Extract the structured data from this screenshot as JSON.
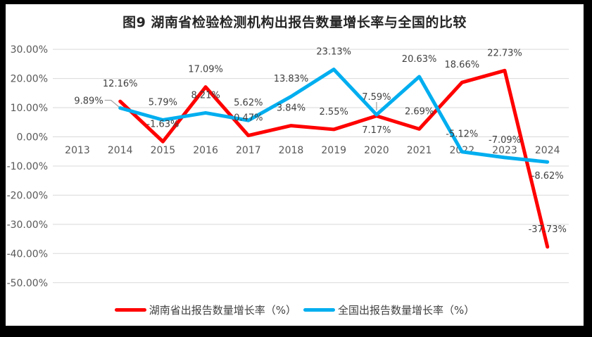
{
  "title": "图9 湖南省检验检测机构出报告数量增长率与全国的比较",
  "colors": {
    "hunan_line": "#FF0000",
    "national_line": "#00AEEF",
    "grid": "#D9D9D9",
    "axis_text": "#595959",
    "data_label_text": "#404040",
    "leader_line": "#A6A6A6",
    "frame": "#000000",
    "chart_background": "#FFFFFF"
  },
  "chart_data": {
    "type": "line",
    "title": "图9 湖南省检验检测机构出报告数量增长率与全国的比较",
    "categories": [
      "2013",
      "2014",
      "2015",
      "2016",
      "2017",
      "2018",
      "2019",
      "2020",
      "2021",
      "2022",
      "2023",
      "2024"
    ],
    "y_ticks": [
      "30.00%",
      "20.00%",
      "10.00%",
      "0.00%",
      "-10.00%",
      "-20.00%",
      "-30.00%",
      "-40.00%",
      "-50.00%"
    ],
    "ylim": [
      -50,
      30
    ],
    "grid": true,
    "legend_position": "bottom",
    "xlabel": "",
    "ylabel": "",
    "series": [
      {
        "name": "湖南省出报告数量增长率（%）",
        "color": "#FF0000",
        "start_index": 1,
        "values": [
          12.16,
          -1.63,
          17.09,
          0.47,
          3.84,
          2.55,
          7.17,
          2.69,
          18.66,
          22.73,
          -37.73
        ],
        "labels": [
          "12.16%",
          "-1.63%",
          "17.09%",
          "0.47%",
          "3.84%",
          "2.55%",
          "7.17%",
          "2.69%",
          "18.66%",
          "22.73%",
          "-37.73%"
        ],
        "label_pos": [
          "a",
          "a",
          "a",
          "a",
          "a",
          "a",
          "b",
          "a",
          "a",
          "a",
          "a"
        ]
      },
      {
        "name": "全国出报告数量增长率（%）",
        "color": "#00AEEF",
        "start_index": 1,
        "values": [
          9.89,
          5.79,
          8.21,
          5.62,
          13.83,
          23.13,
          7.59,
          20.63,
          -5.12,
          -7.09,
          -8.62
        ],
        "labels": [
          "9.89%",
          "5.79%",
          "8.21%",
          "5.62%",
          "13.83%",
          "23.13%",
          "7.59%",
          "20.63%",
          "-5.12%",
          "-7.09%",
          "-8.62%"
        ],
        "label_pos": [
          "ll",
          "a",
          "a",
          "a",
          "a",
          "a",
          "al",
          "a",
          "a",
          "a",
          "b"
        ]
      }
    ]
  },
  "legend": {
    "items": [
      {
        "label": "湖南省出报告数量增长率（%）",
        "color": "#FF0000"
      },
      {
        "label": "全国出报告数量增长率（%）",
        "color": "#00AEEF"
      }
    ]
  }
}
